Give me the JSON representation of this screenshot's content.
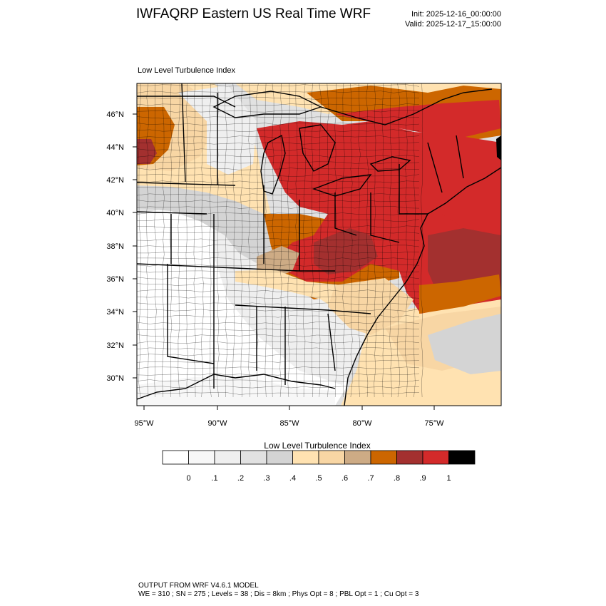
{
  "header": {
    "title": "IWFAQRP Eastern US Real Time WRF",
    "init": "Init: 2025-12-16_00:00:00",
    "valid": "Valid: 2025-12-17_15:00:00"
  },
  "plot": {
    "label": "Low Level Turbulence Index",
    "lat_labels": [
      "46°N",
      "44°N",
      "42°N",
      "40°N",
      "38°N",
      "36°N",
      "34°N",
      "32°N",
      "30°N"
    ],
    "lon_labels": [
      "95°W",
      "90°W",
      "85°W",
      "80°W",
      "75°W"
    ]
  },
  "legend": {
    "title": "Low Level Turbulence Index",
    "ticks": [
      "0",
      ".1",
      ".2",
      ".3",
      ".4",
      ".5",
      ".6",
      ".7",
      ".8",
      ".9",
      "1"
    ],
    "colors": [
      "#ffffff",
      "#f7f7f7",
      "#efefef",
      "#e1e1e1",
      "#d4d4d4",
      "#ffe2b1",
      "#f8d6a4",
      "#cdab85",
      "#cc6600",
      "#a3302f",
      "#d32a2a",
      "#000000"
    ]
  },
  "map_colors": {
    "background": "#e1e1e1",
    "white": "#ffffff",
    "very_light": "#f7f7f7",
    "light": "#efefef",
    "gray": "#d4d4d4",
    "cream": "#ffe2b1",
    "tan": "#f8d6a4",
    "brown": "#cdab85",
    "orange": "#cc6600",
    "darkred": "#a3302f",
    "red": "#d32a2a",
    "black": "#000000"
  },
  "footer": {
    "line1": "OUTPUT FROM WRF V4.6.1 MODEL",
    "line2": "WE = 310 ; SN = 275 ; Levels = 38 ; Dis = 8km ; Phys Opt = 8 ; PBL Opt = 1 ; Cu Opt = 3"
  }
}
